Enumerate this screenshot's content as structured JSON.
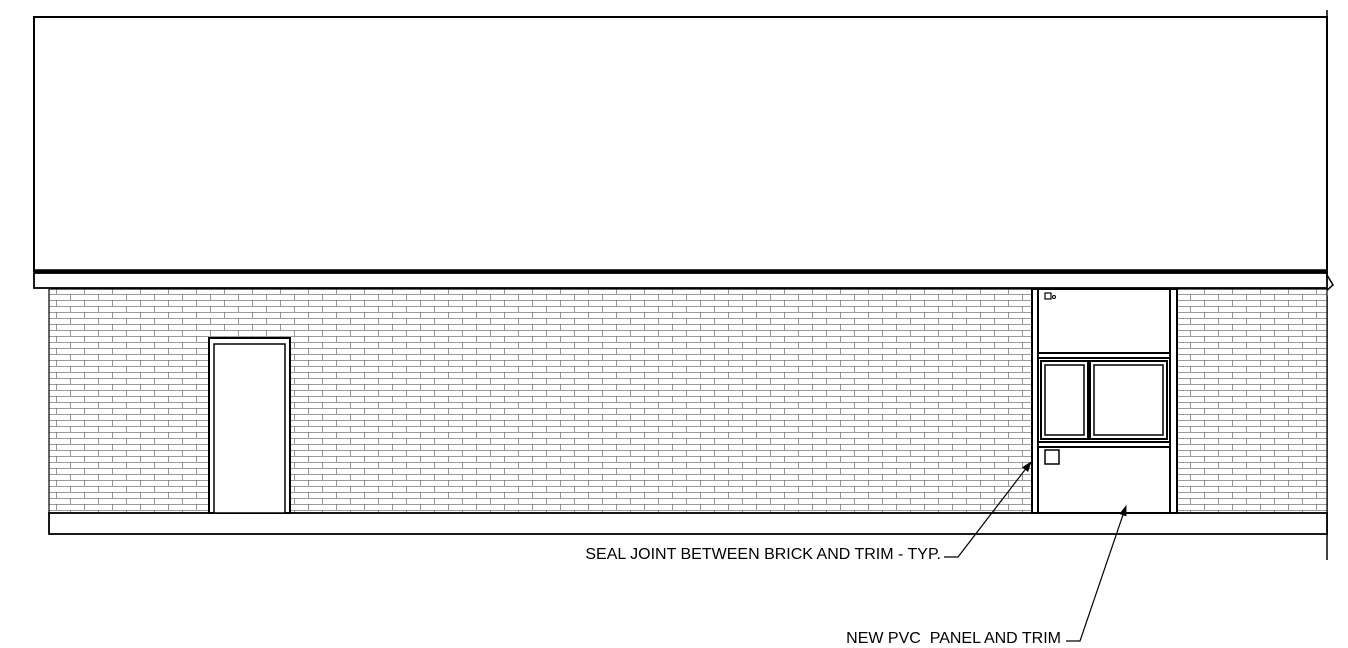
{
  "drawing": {
    "notes": {
      "seal_joint": "SEAL JOINT BETWEEN BRICK AND TRIM - TYP.",
      "pvc_panel": "NEW PVC  PANEL AND TRIM"
    },
    "colors": {
      "line": "#000000",
      "brick_line": "#7a7a7a",
      "background": "#ffffff"
    }
  }
}
